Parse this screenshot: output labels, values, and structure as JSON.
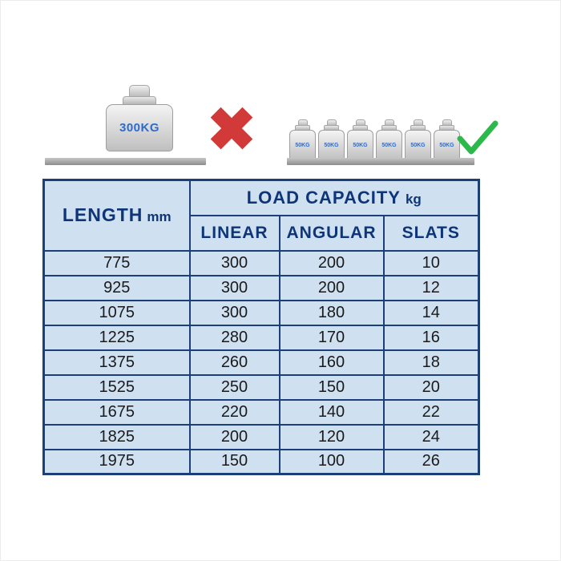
{
  "illustration": {
    "large_weight_label": "300KG",
    "small_weight_label": "50KG",
    "small_weight_count": 6,
    "cross_icon": "✖",
    "cross_color": "#d23a3a",
    "check_color": "#2db84b"
  },
  "chart_data": {
    "type": "table",
    "title": "LOAD CAPACITY kg",
    "header": {
      "length_label": "LENGTH",
      "length_unit": "mm",
      "load_capacity_label": "LOAD CAPACITY",
      "load_capacity_unit": "kg",
      "sub_headers": [
        "LINEAR",
        "ANGULAR",
        "SLATS"
      ]
    },
    "columns": [
      "LENGTH mm",
      "LINEAR",
      "ANGULAR",
      "SLATS"
    ],
    "rows": [
      [
        "775",
        "300",
        "200",
        "10"
      ],
      [
        "925",
        "300",
        "200",
        "12"
      ],
      [
        "1075",
        "300",
        "180",
        "14"
      ],
      [
        "1225",
        "280",
        "170",
        "16"
      ],
      [
        "1375",
        "260",
        "160",
        "18"
      ],
      [
        "1525",
        "250",
        "150",
        "20"
      ],
      [
        "1675",
        "220",
        "140",
        "22"
      ],
      [
        "1825",
        "200",
        "120",
        "24"
      ],
      [
        "1975",
        "150",
        "100",
        "26"
      ]
    ]
  }
}
